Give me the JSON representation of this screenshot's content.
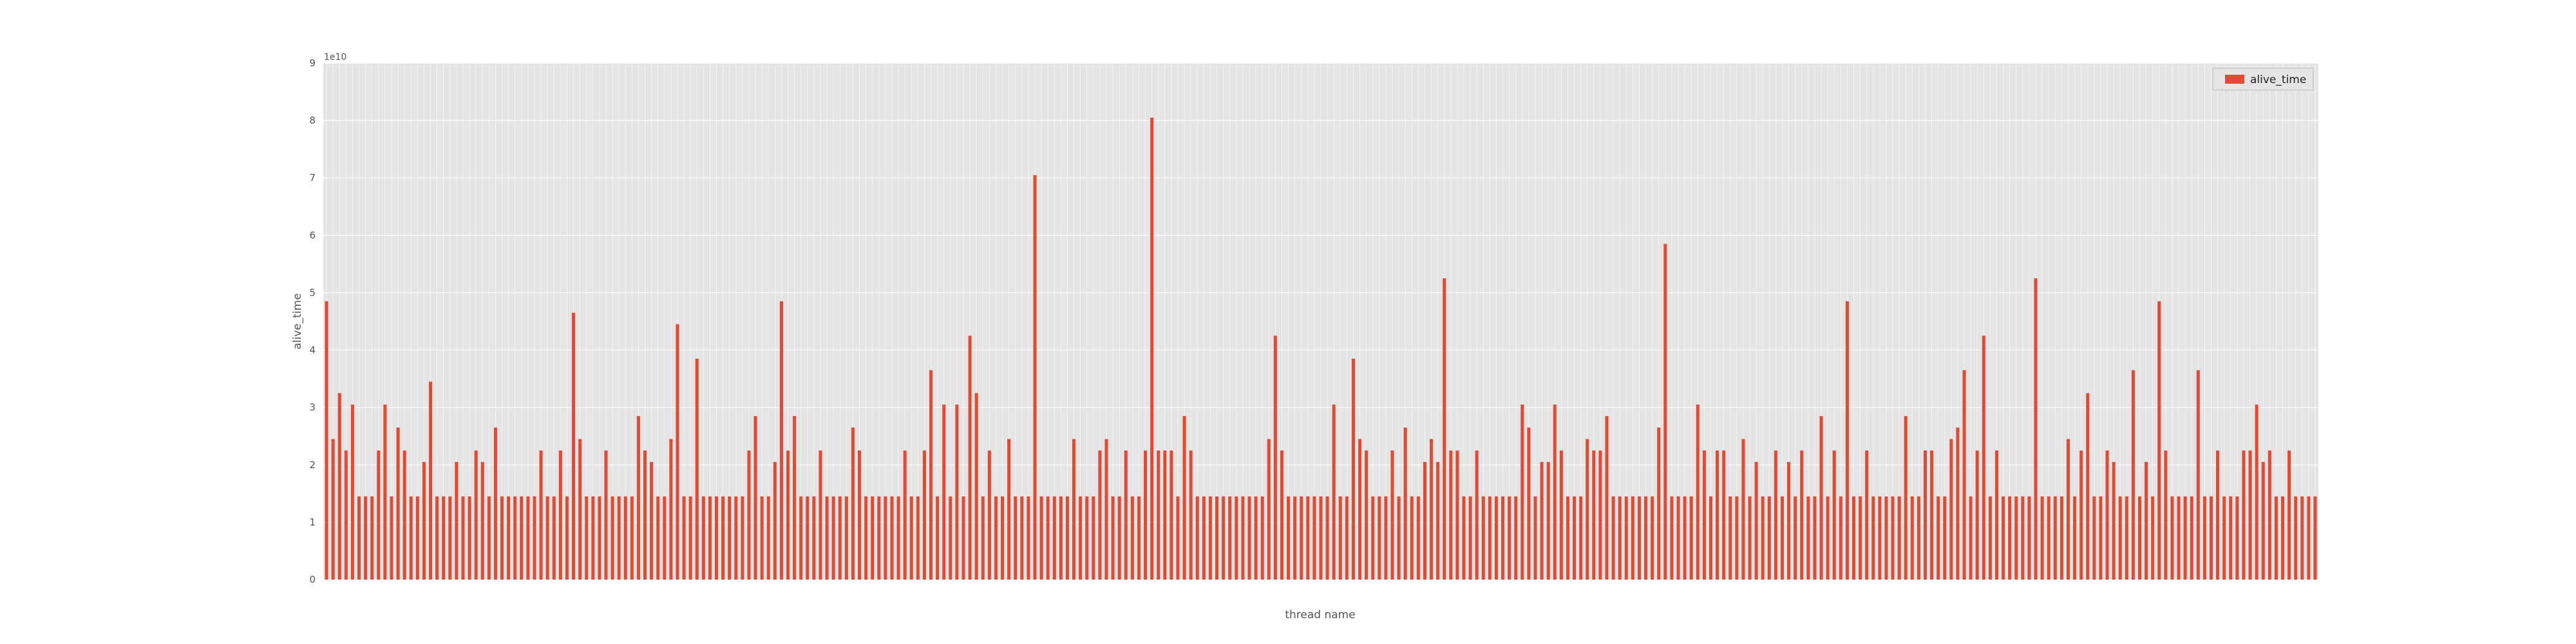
{
  "colors": {
    "plot_background": "#e5e5e5",
    "grid": "#ffffff",
    "bar": "#e24a33",
    "axis_text": "#555555",
    "legend_border": "#bcbcbc"
  },
  "chart_data": {
    "type": "bar",
    "title": "",
    "xlabel": "thread name",
    "ylabel": "alive_time",
    "ylim": [
      0,
      9
    ],
    "y_scale_label": "1e10",
    "yticks": [
      "0",
      "1",
      "2",
      "3",
      "4",
      "5",
      "6",
      "7",
      "8",
      "9"
    ],
    "grid": true,
    "legend_position": "top-right",
    "series": [
      {
        "name": "alive_time",
        "values": [
          4.85,
          2.45,
          3.25,
          2.25,
          3.05,
          1.45,
          1.45,
          1.45,
          2.25,
          3.05,
          1.45,
          2.65,
          2.25,
          1.45,
          1.45,
          2.05,
          3.45,
          1.45,
          1.45,
          1.45,
          2.05,
          1.45,
          1.45,
          2.25,
          2.05,
          1.45,
          2.65,
          1.45,
          1.45,
          1.45,
          1.45,
          1.45,
          1.45,
          2.25,
          1.45,
          1.45,
          2.25,
          1.45,
          4.65,
          2.45,
          1.45,
          1.45,
          1.45,
          2.25,
          1.45,
          1.45,
          1.45,
          1.45,
          2.85,
          2.25,
          2.05,
          1.45,
          1.45,
          2.45,
          4.45,
          1.45,
          1.45,
          3.85,
          1.45,
          1.45,
          1.45,
          1.45,
          1.45,
          1.45,
          1.45,
          2.25,
          2.85,
          1.45,
          1.45,
          2.05,
          4.85,
          2.25,
          2.85,
          1.45,
          1.45,
          1.45,
          2.25,
          1.45,
          1.45,
          1.45,
          1.45,
          2.65,
          2.25,
          1.45,
          1.45,
          1.45,
          1.45,
          1.45,
          1.45,
          2.25,
          1.45,
          1.45,
          2.25,
          3.65,
          1.45,
          3.05,
          1.45,
          3.05,
          1.45,
          4.25,
          3.25,
          1.45,
          2.25,
          1.45,
          1.45,
          2.45,
          1.45,
          1.45,
          1.45,
          7.05,
          1.45,
          1.45,
          1.45,
          1.45,
          1.45,
          2.45,
          1.45,
          1.45,
          1.45,
          2.25,
          2.45,
          1.45,
          1.45,
          2.25,
          1.45,
          1.45,
          2.25,
          8.05,
          2.25,
          2.25,
          2.25,
          1.45,
          2.85,
          2.25,
          1.45,
          1.45,
          1.45,
          1.45,
          1.45,
          1.45,
          1.45,
          1.45,
          1.45,
          1.45,
          1.45,
          2.45,
          4.25,
          2.25,
          1.45,
          1.45,
          1.45,
          1.45,
          1.45,
          1.45,
          1.45,
          3.05,
          1.45,
          1.45,
          3.85,
          2.45,
          2.25,
          1.45,
          1.45,
          1.45,
          2.25,
          1.45,
          2.65,
          1.45,
          1.45,
          2.05,
          2.45,
          2.05,
          5.25,
          2.25,
          2.25,
          1.45,
          1.45,
          2.25,
          1.45,
          1.45,
          1.45,
          1.45,
          1.45,
          1.45,
          3.05,
          2.65,
          1.45,
          2.05,
          2.05,
          3.05,
          2.25,
          1.45,
          1.45,
          1.45,
          2.45,
          2.25,
          2.25,
          2.85,
          1.45,
          1.45,
          1.45,
          1.45,
          1.45,
          1.45,
          1.45,
          2.65,
          5.85,
          1.45,
          1.45,
          1.45,
          1.45,
          3.05,
          2.25,
          1.45,
          2.25,
          2.25,
          1.45,
          1.45,
          2.45,
          1.45,
          2.05,
          1.45,
          1.45,
          2.25,
          1.45,
          2.05,
          1.45,
          2.25,
          1.45,
          1.45,
          2.85,
          1.45,
          2.25,
          1.45,
          4.85,
          1.45,
          1.45,
          2.25,
          1.45,
          1.45,
          1.45,
          1.45,
          1.45,
          2.85,
          1.45,
          1.45,
          2.25,
          2.25,
          1.45,
          1.45,
          2.45,
          2.65,
          3.65,
          1.45,
          2.25,
          4.25,
          1.45,
          2.25,
          1.45,
          1.45,
          1.45,
          1.45,
          1.45,
          5.25,
          1.45,
          1.45,
          1.45,
          1.45,
          2.45,
          1.45,
          2.25,
          3.25,
          1.45,
          1.45,
          2.25,
          2.05,
          1.45,
          1.45,
          3.65,
          1.45,
          2.05,
          1.45,
          4.85,
          2.25,
          1.45,
          1.45,
          1.45,
          1.45,
          3.65,
          1.45,
          1.45,
          2.25,
          1.45,
          1.45,
          1.45,
          2.25,
          2.25,
          3.05,
          2.05,
          2.25,
          1.45,
          1.45,
          2.25,
          1.45,
          1.45,
          1.45,
          1.45
        ]
      }
    ]
  }
}
